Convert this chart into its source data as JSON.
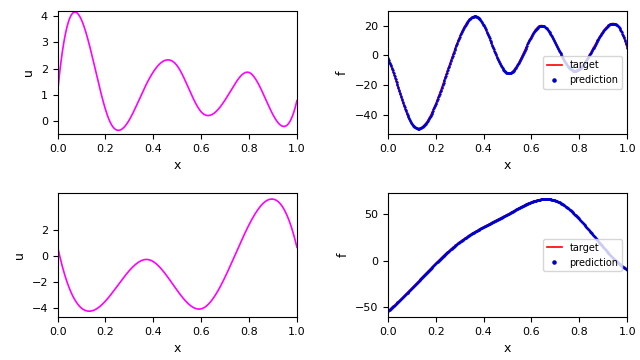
{
  "u_color": "#ff00ff",
  "f_target_color": "#ff0000",
  "f_pred_color": "#0000cd",
  "u_linewidth": 1.2,
  "f_linewidth": 1.2,
  "pred_markersize": 1.5,
  "ylabel_u": "u",
  "ylabel_f": "f",
  "xlabel": "x",
  "legend_target": "target",
  "legend_pred": "prediction"
}
